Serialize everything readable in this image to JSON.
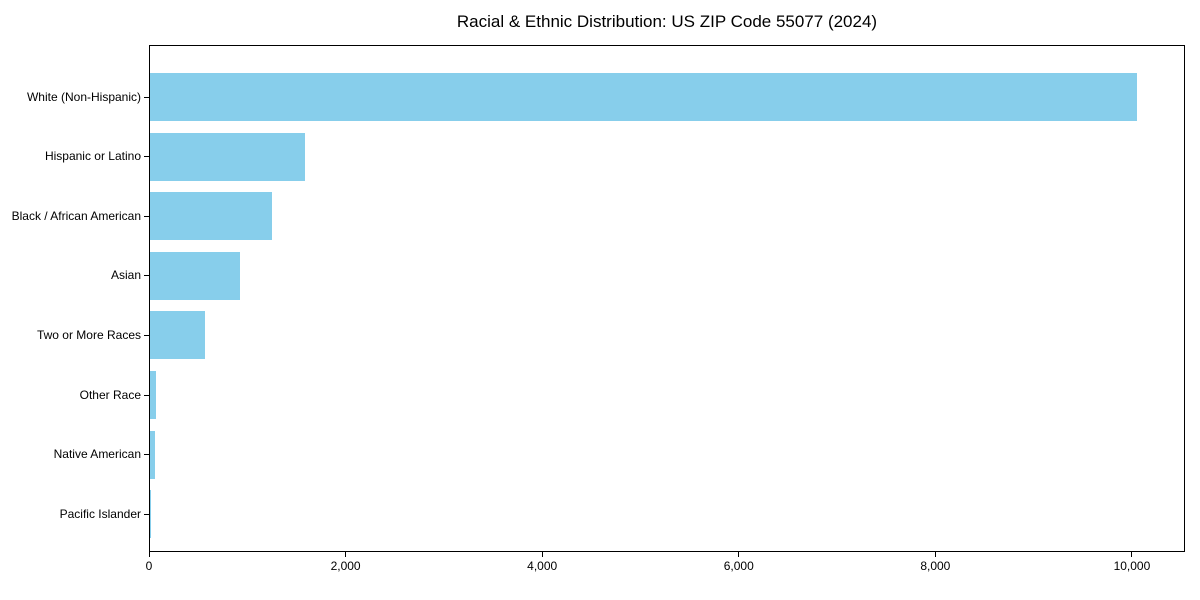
{
  "title": "Racial & Ethnic Distribution: US ZIP Code 55077 (2024)",
  "chart_data": {
    "type": "bar",
    "orientation": "horizontal",
    "title": "Racial & Ethnic Distribution: US ZIP Code 55077 (2024)",
    "categories": [
      "White (Non-Hispanic)",
      "Hispanic or Latino",
      "Black / African American",
      "Asian",
      "Two or More Races",
      "Other Race",
      "Native American",
      "Pacific Islander"
    ],
    "values": [
      10040,
      1575,
      1240,
      915,
      560,
      65,
      55,
      5
    ],
    "xlabel": "",
    "ylabel": "",
    "xlim": [
      0,
      10540
    ],
    "xticks": [
      0,
      2000,
      4000,
      6000,
      8000,
      10000
    ],
    "xtick_labels": [
      "0",
      "2,000",
      "4,000",
      "6,000",
      "8,000",
      "10,000"
    ],
    "bar_color": "#87CEEB",
    "axis_color": "#000000",
    "grid": false,
    "legend": false
  }
}
